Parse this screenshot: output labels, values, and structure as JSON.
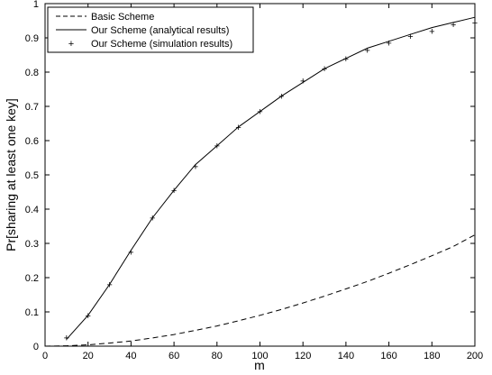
{
  "chart_data": {
    "type": "line",
    "title": "",
    "xlabel": "m",
    "ylabel": "Pr[sharing at least one key]",
    "xlim": [
      0,
      200
    ],
    "ylim": [
      0,
      1
    ],
    "x_ticks": [
      "0",
      "20",
      "40",
      "60",
      "80",
      "100",
      "120",
      "140",
      "160",
      "180",
      "200"
    ],
    "y_ticks": [
      "0",
      "0.1",
      "0.2",
      "0.3",
      "0.4",
      "0.5",
      "0.6",
      "0.7",
      "0.8",
      "0.9",
      "1"
    ],
    "grid": false,
    "legend_position": "top-left",
    "series": [
      {
        "name": "Basic Scheme",
        "style": "dashed",
        "x": [
          0,
          10,
          20,
          30,
          40,
          50,
          60,
          70,
          80,
          90,
          100,
          110,
          120,
          130,
          140,
          150,
          160,
          170,
          180,
          190,
          200
        ],
        "y": [
          0,
          0.001,
          0.004,
          0.009,
          0.015,
          0.024,
          0.034,
          0.046,
          0.059,
          0.074,
          0.09,
          0.107,
          0.126,
          0.146,
          0.167,
          0.189,
          0.213,
          0.238,
          0.264,
          0.291,
          0.325
        ]
      },
      {
        "name": "Our Scheme (analytical results)",
        "style": "solid",
        "x": [
          10,
          20,
          30,
          40,
          50,
          60,
          70,
          80,
          90,
          100,
          110,
          120,
          130,
          140,
          150,
          160,
          170,
          180,
          190,
          200
        ],
        "y": [
          0.02,
          0.09,
          0.18,
          0.28,
          0.375,
          0.455,
          0.53,
          0.585,
          0.64,
          0.685,
          0.73,
          0.77,
          0.81,
          0.84,
          0.87,
          0.89,
          0.91,
          0.93,
          0.945,
          0.96
        ]
      },
      {
        "name": "Our Scheme (simulation results)",
        "style": "markers",
        "x": [
          10,
          20,
          30,
          40,
          50,
          60,
          70,
          80,
          90,
          100,
          110,
          120,
          130,
          140,
          150,
          160,
          170,
          180,
          190,
          200
        ],
        "y": [
          0.025,
          0.09,
          0.18,
          0.275,
          0.375,
          0.455,
          0.525,
          0.585,
          0.64,
          0.685,
          0.73,
          0.775,
          0.81,
          0.84,
          0.865,
          0.885,
          0.905,
          0.92,
          0.94,
          0.945
        ]
      }
    ]
  }
}
